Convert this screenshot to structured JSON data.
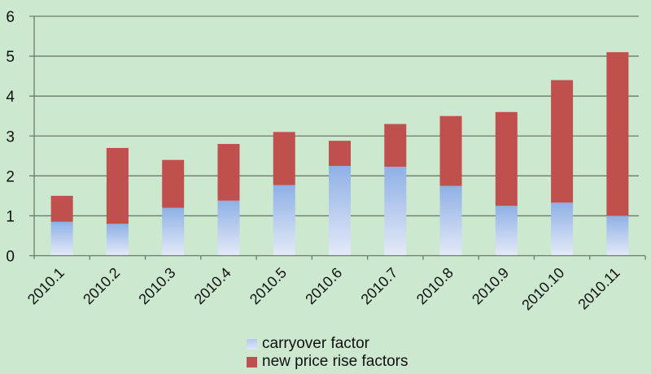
{
  "chart_data": {
    "type": "bar",
    "stacked": true,
    "title": "",
    "xlabel": "",
    "ylabel": "",
    "categories": [
      "2010.1",
      "2010.2",
      "2010.3",
      "2010.4",
      "2010.5",
      "2010.6",
      "2010.7",
      "2010.8",
      "2010.9",
      "2010.10",
      "2010.11"
    ],
    "series": [
      {
        "name": "carryover factor",
        "color": "#93b3e6",
        "values": [
          0.85,
          0.8,
          1.2,
          1.38,
          1.77,
          2.25,
          2.23,
          1.75,
          1.25,
          1.33,
          1.0
        ]
      },
      {
        "name": "new price rise factors",
        "color": "#c0504d",
        "values": [
          0.65,
          1.9,
          1.2,
          1.42,
          1.33,
          0.63,
          1.07,
          1.75,
          2.35,
          3.07,
          4.1
        ]
      }
    ],
    "totals": [
      1.5,
      2.7,
      2.4,
      2.8,
      3.1,
      2.88,
      3.3,
      3.5,
      3.6,
      4.4,
      5.1
    ],
    "ylim": [
      0,
      6
    ],
    "yticks": [
      0,
      1,
      2,
      3,
      4,
      5,
      6
    ],
    "grid": true,
    "legend_position": "bottom",
    "background": "#cce8cf"
  },
  "legend": {
    "items": [
      {
        "label": "carryover factor",
        "color": "#93b3e6"
      },
      {
        "label": "new price rise factors",
        "color": "#c0504d"
      }
    ]
  }
}
